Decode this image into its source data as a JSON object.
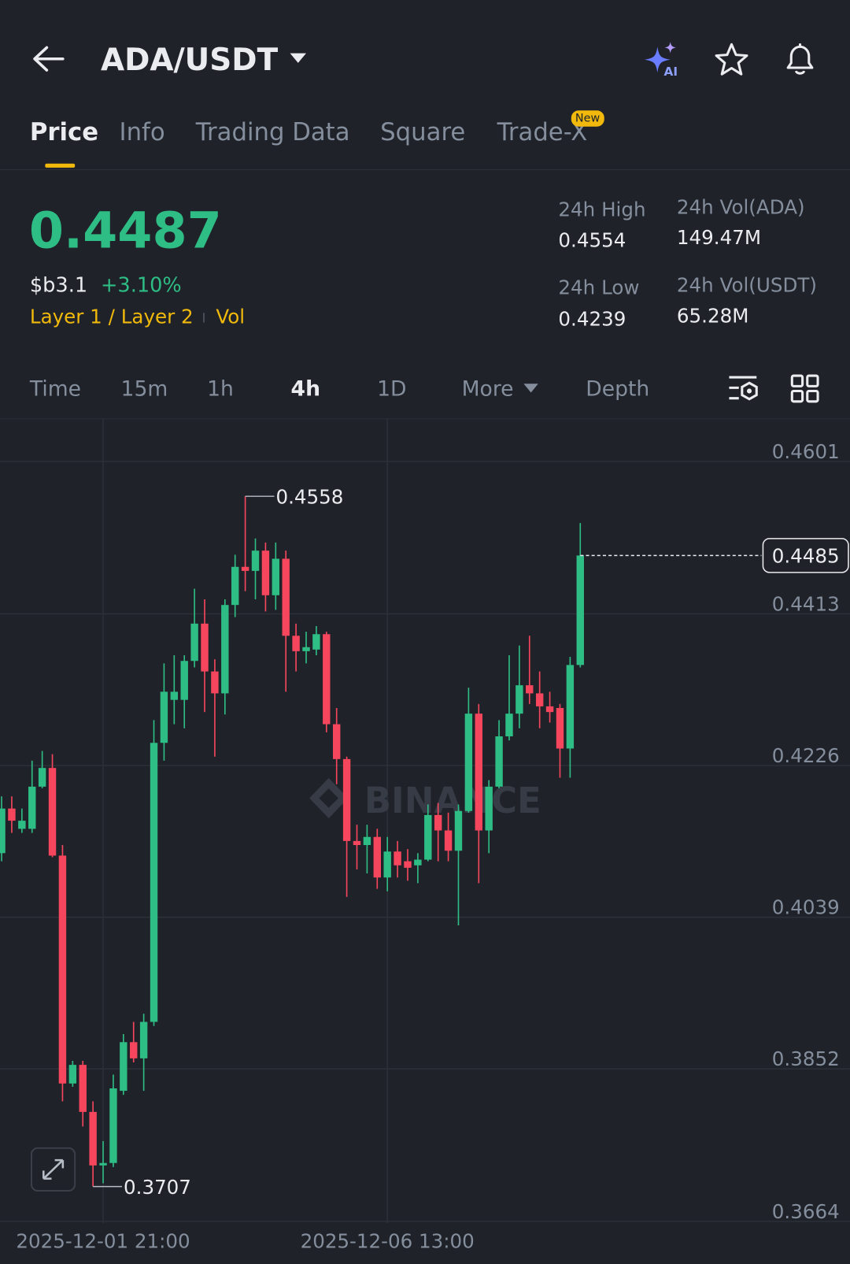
{
  "header": {
    "pair": "ADA/USDT"
  },
  "tabs": [
    "Price",
    "Info",
    "Trading Data",
    "Square",
    "Trade-X"
  ],
  "new_badge": "New",
  "ticker": {
    "price": "0.4487",
    "fiat": "$b3.1",
    "change": "+3.10%",
    "tags": [
      "Layer 1 / Layer 2",
      "Vol"
    ],
    "stats": [
      {
        "label": "24h High",
        "value": "0.4554"
      },
      {
        "label": "24h Low",
        "value": "0.4239"
      },
      {
        "label": "24h Vol(ADA)",
        "value": "149.47M"
      },
      {
        "label": "24h Vol(USDT)",
        "value": "65.28M"
      }
    ]
  },
  "intervals": [
    "Time",
    "15m",
    "1h",
    "4h",
    "1D",
    "More",
    "Depth"
  ],
  "watermark": "BINANCE",
  "chart_data": {
    "type": "candlestick",
    "categories": [
      null,
      null,
      null,
      null,
      null,
      null,
      null,
      null,
      null,
      null,
      "2025-12-01 21:00",
      null,
      null,
      null,
      null,
      null,
      null,
      null,
      null,
      null,
      null,
      null,
      null,
      null,
      null,
      null,
      null,
      null,
      null,
      null,
      null,
      null,
      null,
      null,
      null,
      null,
      null,
      null,
      "2025-12-06 13:00",
      null,
      null,
      null,
      null,
      null,
      null,
      null,
      null,
      null,
      null,
      null,
      null,
      null,
      null,
      null,
      null,
      null,
      null,
      null
    ],
    "open": [
      0.4118,
      0.4173,
      0.4148,
      0.4148,
      0.42,
      0.4223,
      0.4115,
      0.3834,
      0.3857,
      0.3799,
      0.3733,
      0.3736,
      0.3825,
      0.3885,
      0.3865,
      0.391,
      0.4254,
      0.4307,
      0.4307,
      0.4355,
      0.4401,
      0.4342,
      0.4315,
      0.4424,
      0.4471,
      0.4466,
      0.4491,
      0.4436,
      0.4481,
      0.4386,
      0.4367,
      0.4369,
      0.4388,
      0.4277,
      0.4234,
      0.4133,
      0.4128,
      0.4138,
      0.4088,
      0.412,
      0.4108,
      0.4103,
      0.411,
      0.4165,
      0.4146,
      0.4121,
      0.417,
      0.429,
      0.4146,
      0.42,
      0.4262,
      0.429,
      0.4325,
      0.4315,
      0.4299,
      0.4297,
      0.4247,
      0.435
    ],
    "high": [
      0.4188,
      0.4188,
      0.4173,
      0.4232,
      0.4244,
      0.424,
      0.4128,
      0.3862,
      0.3862,
      0.3812,
      0.3763,
      0.3845,
      0.3895,
      0.391,
      0.392,
      0.4282,
      0.4352,
      0.4362,
      0.4362,
      0.4444,
      0.4431,
      0.4357,
      0.4431,
      0.4486,
      0.4558,
      0.4506,
      0.4501,
      0.4501,
      0.4491,
      0.4401,
      0.4391,
      0.4398,
      0.4391,
      0.4297,
      0.4237,
      0.4153,
      0.4153,
      0.4148,
      0.4138,
      0.4133,
      0.4123,
      0.4118,
      0.4178,
      0.418,
      0.4168,
      0.4178,
      0.4322,
      0.4302,
      0.4208,
      0.4282,
      0.4362,
      0.4374,
      0.4386,
      0.4342,
      0.4317,
      0.4302,
      0.436,
      0.4525
    ],
    "low": [
      0.4108,
      0.4143,
      0.4143,
      0.4143,
      0.4198,
      0.4113,
      0.3812,
      0.383,
      0.3781,
      0.3707,
      0.3711,
      0.3731,
      0.382,
      0.386,
      0.3825,
      0.3905,
      0.4232,
      0.4277,
      0.4272,
      0.4347,
      0.4292,
      0.4237,
      0.4289,
      0.4409,
      0.4441,
      0.4431,
      0.4416,
      0.4418,
      0.4317,
      0.4342,
      0.4352,
      0.4362,
      0.4267,
      0.4203,
      0.4064,
      0.4098,
      0.4093,
      0.4074,
      0.4071,
      0.4088,
      0.4084,
      0.4081,
      0.4108,
      0.4108,
      0.4108,
      0.4029,
      0.4168,
      0.4081,
      0.4118,
      0.4198,
      0.4257,
      0.4272,
      0.4302,
      0.4272,
      0.4279,
      0.4211,
      0.4211,
      0.4347
    ],
    "close": [
      0.4173,
      0.4158,
      0.4158,
      0.42,
      0.4223,
      0.4115,
      0.3834,
      0.3857,
      0.3799,
      0.3733,
      0.3736,
      0.3828,
      0.3885,
      0.3865,
      0.391,
      0.4254,
      0.4317,
      0.4317,
      0.4355,
      0.4401,
      0.4342,
      0.4315,
      0.4424,
      0.4471,
      0.4466,
      0.4491,
      0.4436,
      0.4481,
      0.4386,
      0.4367,
      0.4372,
      0.4388,
      0.4277,
      0.4234,
      0.4133,
      0.4128,
      0.4138,
      0.4088,
      0.412,
      0.4103,
      0.41,
      0.411,
      0.4165,
      0.4146,
      0.4121,
      0.417,
      0.429,
      0.4146,
      0.42,
      0.4262,
      0.429,
      0.4325,
      0.4315,
      0.4299,
      0.4292,
      0.4247,
      0.435,
      0.4485
    ],
    "up_color": "#2ebd85",
    "down_color": "#f6465d",
    "ylim": [
      0.3662,
      0.4653
    ],
    "yticks": [
      0.4601,
      0.4413,
      0.4226,
      0.4039,
      0.3852,
      0.3664
    ],
    "last_price": 0.4485,
    "high_marker": 0.4558,
    "low_marker": 0.3707,
    "grid": true
  }
}
